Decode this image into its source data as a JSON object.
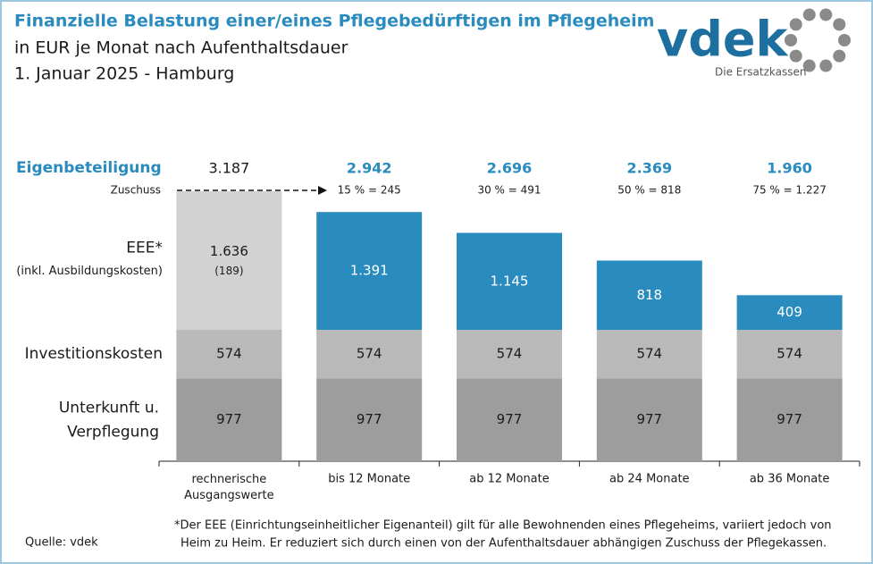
{
  "chart_data": {
    "type": "stacked-bar",
    "title": "Finanzielle Belastung einer/eines Pflegebedürftigen im Pflegeheim",
    "subtitle": "in EUR je Monat nach Aufenthaltsdauer",
    "date_line": "1. Januar 2025 - Hamburg",
    "categories": [
      "rechnerische Ausgangswerte",
      "bis 12 Monate",
      "ab 12 Monate",
      "ab 24 Monate",
      "ab 36 Monate"
    ],
    "series": [
      {
        "name": "Unterkunft u. Verpflegung",
        "color": "#9d9d9d",
        "values": [
          977,
          977,
          977,
          977,
          977
        ]
      },
      {
        "name": "Investitionskosten",
        "color": "#b9b9b9",
        "values": [
          574,
          574,
          574,
          574,
          574
        ]
      },
      {
        "name": "EEE*",
        "sublabel": "(inkl. Ausbildungskosten)",
        "colors": [
          "#d2d2d2",
          "#2a8bbf",
          "#2a8bbf",
          "#2a8bbf",
          "#2a8bbf"
        ],
        "values": [
          1636,
          1391,
          1145,
          818,
          409
        ],
        "value_labels": [
          "1.636",
          "1.391",
          "1.145",
          "818",
          "409"
        ],
        "annotation": "(189)"
      }
    ],
    "totals": {
      "name": "Eigenbeteiligung",
      "values": [
        3187,
        2942,
        2696,
        2369,
        1960
      ],
      "value_labels": [
        "3.187",
        "2.942",
        "2.696",
        "2.369",
        "1.960"
      ]
    },
    "zuschuss": {
      "name": "Zuschuss",
      "labels": [
        null,
        "15 % = 245",
        "30 % = 491",
        "50 % = 818",
        "75 % = 1.227"
      ]
    },
    "footnote": [
      "*Der EEE (Einrichtungseinheitlicher Eigenanteil) gilt für alle Bewohnenden eines Pflegeheims, variiert jedoch von",
      "Heim zu Heim. Er reduziert sich durch einen von der Aufenthaltsdauer abhängigen Zuschuss der Pflegekassen."
    ],
    "source": "Quelle: vdek",
    "logo_text": "vdek",
    "logo_subtext": "Die Ersatzkassen"
  }
}
